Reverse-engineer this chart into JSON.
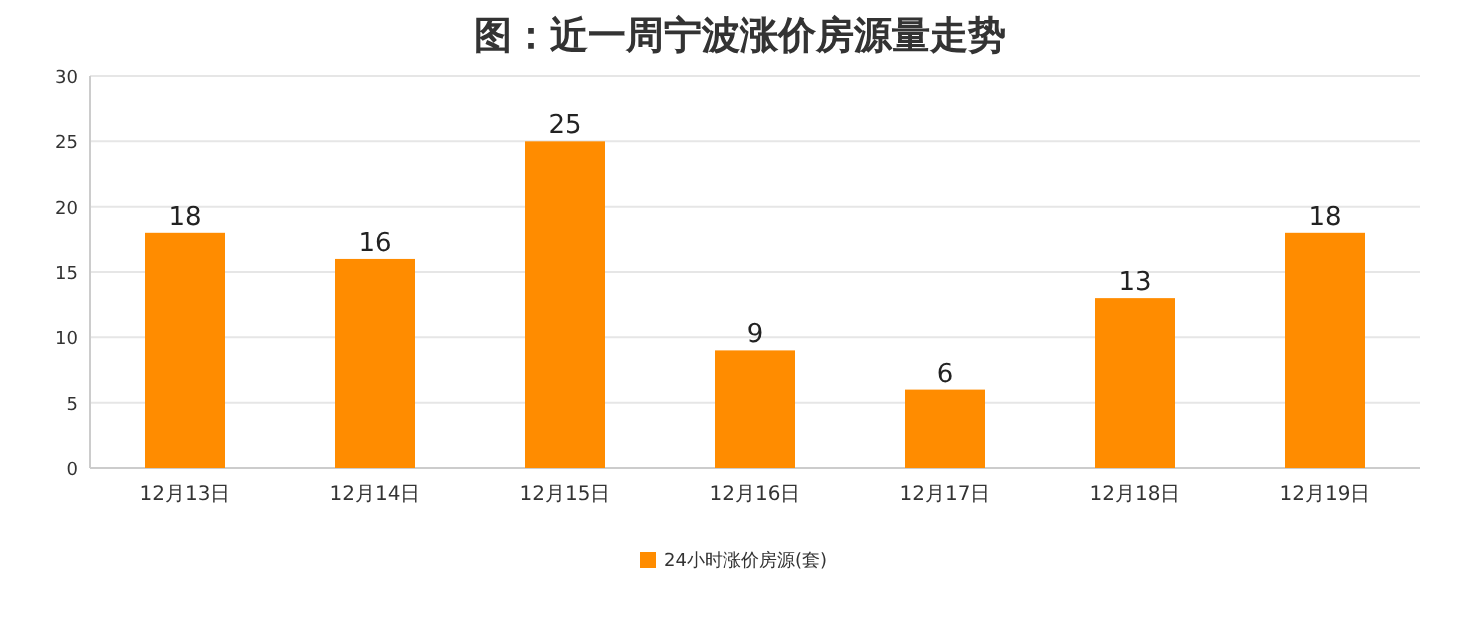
{
  "chart_data": {
    "type": "bar",
    "title": "图：近一周宁波涨价房源量走势",
    "categories": [
      "12月13日",
      "12月14日",
      "12月15日",
      "12月16日",
      "12月17日",
      "12月18日",
      "12月19日"
    ],
    "series": [
      {
        "name": "24小时涨价房源(套)",
        "color": "#ff8c00",
        "values": [
          18,
          16,
          25,
          9,
          6,
          13,
          18
        ]
      }
    ],
    "ylim": [
      0,
      30
    ],
    "yticks": [
      0,
      5,
      10,
      15,
      20,
      25,
      30
    ],
    "grid": "y",
    "legend": "bottom",
    "data_labels": true
  }
}
